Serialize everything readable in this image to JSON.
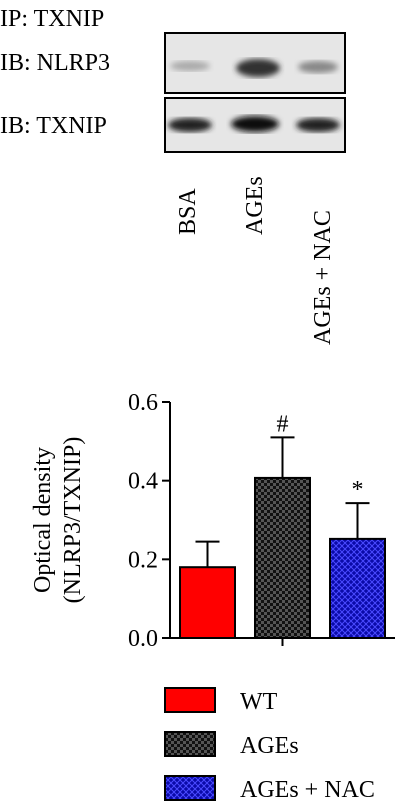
{
  "blot": {
    "ip_label": "IP: TXNIP",
    "rows": [
      "IB: NLRP3",
      "IB: TXNIP"
    ],
    "lanes": [
      "BSA",
      "AGEs",
      "AGEs + NAC"
    ]
  },
  "chart_data": {
    "type": "bar",
    "y_label": [
      "Optical density",
      "(NLRP3/TXNIP)"
    ],
    "ylim": [
      0,
      0.6
    ],
    "yticks": [
      {
        "value": 0,
        "label": "0.0"
      },
      0.2,
      0.4,
      0.6
    ],
    "series": [
      {
        "name": "WT",
        "color": "#ff0000",
        "values": [
          0.18
        ],
        "errors": [
          0.065
        ]
      },
      {
        "name": "AGEs",
        "color": "#1a1a1a",
        "values": [
          0.407
        ],
        "errors": [
          0.103
        ],
        "annotation": "#"
      },
      {
        "name": "AGEs + NAC",
        "color": "#1010c0",
        "values": [
          0.252
        ],
        "errors": [
          0.091
        ],
        "annotation": "*"
      }
    ]
  }
}
